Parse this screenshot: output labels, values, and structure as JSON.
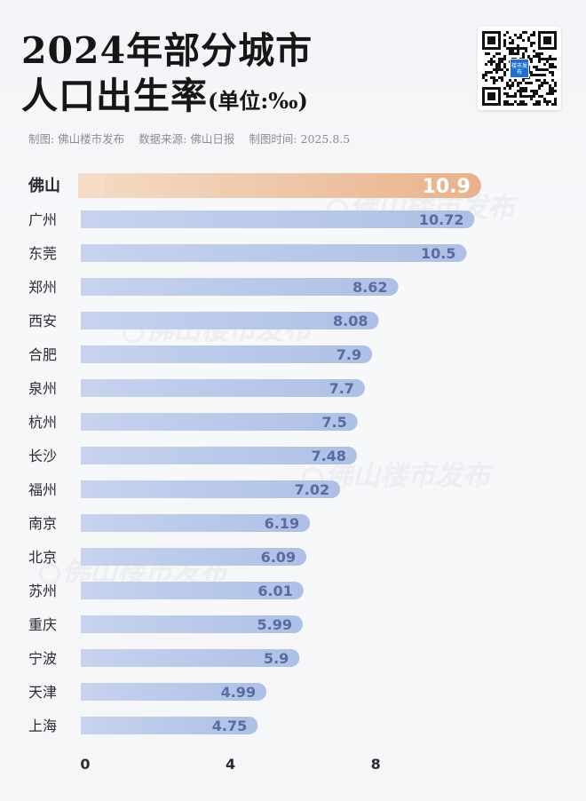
{
  "title_line1": "2024年部分城市",
  "title_line2": "人口出生率",
  "title_unit": "(单位:‰)",
  "credits": {
    "maker": "制图: 佛山楼市发布",
    "source": "数据来源: 佛山日报",
    "date": "制图时间: 2025.8.5"
  },
  "qr_logo_text": "楼市发布",
  "watermark_text": "佛山楼市发布",
  "colors": {
    "highlight_bar": "#e9b28c",
    "bar": "#aec0e6",
    "bar_label": "#5a6c9e",
    "highlight_label": "#ffffff"
  },
  "chart_data": {
    "type": "bar",
    "orientation": "horizontal",
    "categories": [
      "佛山",
      "广州",
      "东莞",
      "郑州",
      "西安",
      "合肥",
      "泉州",
      "杭州",
      "长沙",
      "福州",
      "南京",
      "北京",
      "苏州",
      "重庆",
      "宁波",
      "天津",
      "上海"
    ],
    "values": [
      10.9,
      10.72,
      10.5,
      8.62,
      8.08,
      7.9,
      7.7,
      7.5,
      7.48,
      7.02,
      6.19,
      6.09,
      6.01,
      5.99,
      5.9,
      4.99,
      4.75
    ],
    "value_labels": [
      "10.9",
      "10.72",
      "10.5",
      "8.62",
      "8.08",
      "7.9",
      "7.7",
      "7.5",
      "7.48",
      "7.02",
      "6.19",
      "6.09",
      "6.01",
      "5.99",
      "5.9",
      "4.99",
      "4.75"
    ],
    "highlight": "佛山",
    "xticks": [
      "0",
      "4",
      "8"
    ],
    "xtick_values": [
      0,
      4,
      8
    ],
    "xlim": [
      0,
      11.2
    ],
    "grid": false
  }
}
